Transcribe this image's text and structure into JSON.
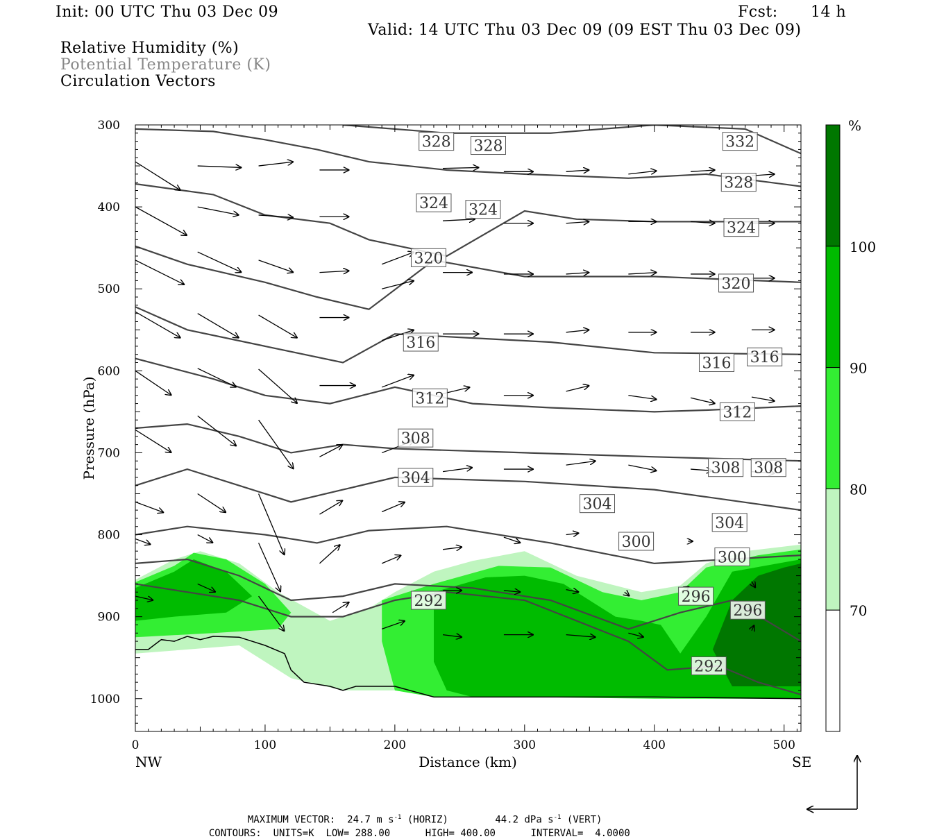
{
  "header": {
    "init": "Init: 00 UTC Thu 03 Dec 09",
    "fcst_label": "Fcst:",
    "fcst_value": "14 h",
    "valid": "Valid: 14 UTC Thu 03 Dec 09 (09 EST Thu 03 Dec 09)"
  },
  "legend": {
    "field1": "Relative Humidity (%)",
    "field2": "Potential Temperature (K)",
    "field3": "Circulation Vectors"
  },
  "footer": {
    "max_vector_label": "MAXIMUM VECTOR:",
    "max_vector_horiz": "24.7 m s",
    "horiz_tag": "(HORIZ)",
    "max_vector_vert": "44.2 dPa s",
    "vert_tag": "(VERT)",
    "exp": "-1",
    "contours_label": "CONTOURS:",
    "units": "UNITS=K",
    "low": "LOW=",
    "low_value": "288.00",
    "high": "HIGH=",
    "high_value": "400.00",
    "interval": "INTERVAL=",
    "interval_value": "4.0000"
  },
  "colors": {
    "rh_70": "#bff5bf",
    "rh_80": "#33ee33",
    "rh_90": "#00bb00",
    "rh_100": "#007700",
    "theta_line": "#444444"
  },
  "chart_data": {
    "type": "cross-section",
    "xlabel": "Distance (km)",
    "ylabel": "Pressure (hPa)",
    "x_left_label": "NW",
    "x_right_label": "SE",
    "xlim": [
      0,
      513
    ],
    "ylim": [
      1040,
      300
    ],
    "x_ticks": [
      0,
      100,
      200,
      300,
      400,
      500
    ],
    "y_ticks": [
      300,
      400,
      500,
      600,
      700,
      800,
      900,
      1000
    ],
    "colorbar": {
      "unit": "%",
      "levels": [
        70,
        80,
        90,
        100
      ],
      "labels": [
        "70",
        "80",
        "90",
        "100"
      ]
    },
    "theta_contours": [
      {
        "level": 328,
        "p": [
          [
            0,
            305
          ],
          [
            60,
            308
          ],
          [
            100,
            318
          ],
          [
            140,
            330
          ],
          [
            180,
            345
          ],
          [
            240,
            355
          ],
          [
            300,
            360
          ],
          [
            380,
            365
          ],
          [
            440,
            360
          ],
          [
            513,
            375
          ]
        ]
      },
      {
        "level": 332,
        "p": [
          [
            160,
            300
          ],
          [
            240,
            310
          ],
          [
            320,
            310
          ],
          [
            400,
            300
          ],
          [
            470,
            305
          ],
          [
            513,
            335
          ]
        ]
      },
      {
        "level": 324,
        "p": [
          [
            0,
            372
          ],
          [
            60,
            385
          ],
          [
            100,
            410
          ],
          [
            150,
            420
          ],
          [
            180,
            440
          ],
          [
            240,
            460
          ],
          [
            300,
            405
          ],
          [
            340,
            415
          ],
          [
            400,
            418
          ],
          [
            513,
            418
          ]
        ]
      },
      {
        "level": 320,
        "p": [
          [
            0,
            448
          ],
          [
            40,
            470
          ],
          [
            100,
            492
          ],
          [
            140,
            510
          ],
          [
            180,
            525
          ],
          [
            230,
            465
          ],
          [
            300,
            485
          ],
          [
            400,
            485
          ],
          [
            513,
            492
          ]
        ]
      },
      {
        "level": 316,
        "p": [
          [
            0,
            522
          ],
          [
            40,
            550
          ],
          [
            100,
            570
          ],
          [
            160,
            590
          ],
          [
            200,
            555
          ],
          [
            260,
            560
          ],
          [
            320,
            565
          ],
          [
            400,
            578
          ],
          [
            513,
            580
          ]
        ]
      },
      {
        "level": 312,
        "p": [
          [
            0,
            585
          ],
          [
            60,
            610
          ],
          [
            100,
            630
          ],
          [
            150,
            640
          ],
          [
            200,
            620
          ],
          [
            260,
            640
          ],
          [
            320,
            645
          ],
          [
            400,
            650
          ],
          [
            440,
            648
          ],
          [
            513,
            643
          ]
        ]
      },
      {
        "level": 308,
        "p": [
          [
            0,
            670
          ],
          [
            40,
            665
          ],
          [
            80,
            680
          ],
          [
            120,
            700
          ],
          [
            160,
            690
          ],
          [
            200,
            695
          ],
          [
            300,
            700
          ],
          [
            400,
            705
          ],
          [
            513,
            710
          ]
        ]
      },
      {
        "level": 304,
        "p": [
          [
            0,
            740
          ],
          [
            40,
            720
          ],
          [
            80,
            740
          ],
          [
            120,
            760
          ],
          [
            160,
            745
          ],
          [
            200,
            730
          ],
          [
            300,
            735
          ],
          [
            400,
            745
          ],
          [
            513,
            770
          ]
        ]
      },
      {
        "level": 300,
        "p": [
          [
            0,
            800
          ],
          [
            40,
            790
          ],
          [
            100,
            800
          ],
          [
            140,
            810
          ],
          [
            180,
            795
          ],
          [
            240,
            790
          ],
          [
            320,
            810
          ],
          [
            400,
            835
          ],
          [
            513,
            825
          ]
        ]
      },
      {
        "level": 296,
        "p": [
          [
            0,
            835
          ],
          [
            40,
            830
          ],
          [
            80,
            850
          ],
          [
            120,
            880
          ],
          [
            160,
            875
          ],
          [
            200,
            860
          ],
          [
            260,
            865
          ],
          [
            320,
            880
          ],
          [
            380,
            915
          ],
          [
            420,
            895
          ],
          [
            460,
            880
          ],
          [
            513,
            930
          ]
        ]
      },
      {
        "level": 292,
        "p": [
          [
            0,
            860
          ],
          [
            40,
            870
          ],
          [
            80,
            880
          ],
          [
            120,
            900
          ],
          [
            160,
            900
          ],
          [
            200,
            880
          ],
          [
            240,
            870
          ],
          [
            300,
            880
          ],
          [
            380,
            930
          ],
          [
            410,
            965
          ],
          [
            450,
            960
          ],
          [
            480,
            980
          ],
          [
            513,
            995
          ]
        ]
      }
    ],
    "contour_labels": [
      {
        "text": "328",
        "x": 232,
        "p": 320
      },
      {
        "text": "328",
        "x": 272,
        "p": 325
      },
      {
        "text": "332",
        "x": 466,
        "p": 320
      },
      {
        "text": "328",
        "x": 465,
        "p": 370
      },
      {
        "text": "324",
        "x": 230,
        "p": 395
      },
      {
        "text": "324",
        "x": 268,
        "p": 403
      },
      {
        "text": "324",
        "x": 467,
        "p": 425
      },
      {
        "text": "320",
        "x": 226,
        "p": 462
      },
      {
        "text": "320",
        "x": 463,
        "p": 493
      },
      {
        "text": "316",
        "x": 220,
        "p": 565
      },
      {
        "text": "316",
        "x": 448,
        "p": 590
      },
      {
        "text": "316",
        "x": 485,
        "p": 583
      },
      {
        "text": "312",
        "x": 227,
        "p": 633
      },
      {
        "text": "312",
        "x": 464,
        "p": 650
      },
      {
        "text": "308",
        "x": 216,
        "p": 682
      },
      {
        "text": "308",
        "x": 455,
        "p": 718
      },
      {
        "text": "308",
        "x": 488,
        "p": 718
      },
      {
        "text": "304",
        "x": 216,
        "p": 730
      },
      {
        "text": "304",
        "x": 356,
        "p": 762
      },
      {
        "text": "304",
        "x": 458,
        "p": 785
      },
      {
        "text": "300",
        "x": 386,
        "p": 808
      },
      {
        "text": "300",
        "x": 460,
        "p": 827
      },
      {
        "text": "296",
        "x": 432,
        "p": 875
      },
      {
        "text": "296",
        "x": 472,
        "p": 892
      },
      {
        "text": "292",
        "x": 226,
        "p": 880
      },
      {
        "text": "292",
        "x": 442,
        "p": 960
      }
    ],
    "terrain_p": [
      [
        0,
        940
      ],
      [
        10,
        940
      ],
      [
        20,
        928
      ],
      [
        30,
        930
      ],
      [
        40,
        924
      ],
      [
        50,
        928
      ],
      [
        60,
        924
      ],
      [
        80,
        925
      ],
      [
        100,
        935
      ],
      [
        115,
        945
      ],
      [
        120,
        965
      ],
      [
        130,
        980
      ],
      [
        150,
        985
      ],
      [
        160,
        990
      ],
      [
        170,
        985
      ],
      [
        200,
        985
      ],
      [
        230,
        998
      ],
      [
        300,
        998
      ],
      [
        400,
        998
      ],
      [
        513,
        1000
      ]
    ]
  }
}
